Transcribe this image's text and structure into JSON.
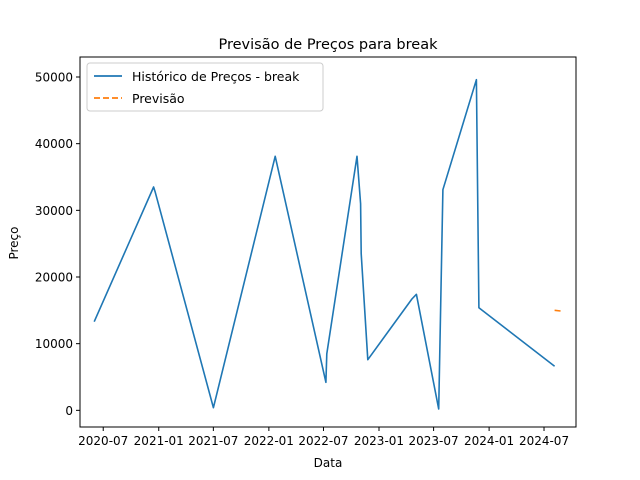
{
  "chart_data": {
    "type": "line",
    "title": "Previsão de Preços para break",
    "xlabel": "Data",
    "ylabel": "Preço",
    "x_scale": "date",
    "xlim": [
      "2020-04-15",
      "2024-10-15"
    ],
    "ylim": [
      -2500,
      53000
    ],
    "x_ticks": [
      "2020-07-01",
      "2021-01-01",
      "2021-07-01",
      "2022-01-01",
      "2022-07-01",
      "2023-01-01",
      "2023-07-01",
      "2024-01-01",
      "2024-07-01"
    ],
    "x_tick_labels": [
      "2020-07",
      "2021-01",
      "2021-07",
      "2022-01",
      "2022-07",
      "2023-01",
      "2023-07",
      "2024-01",
      "2024-07"
    ],
    "y_ticks": [
      0,
      10000,
      20000,
      30000,
      40000,
      50000
    ],
    "y_tick_labels": [
      "0",
      "10000",
      "20000",
      "30000",
      "40000",
      "50000"
    ],
    "grid": false,
    "legend_position": "top-left",
    "series": [
      {
        "name": "Histórico de Preços - break",
        "color": "#1f77b4",
        "style": "solid",
        "x": [
          "2020-06-01",
          "2020-12-15",
          "2020-12-20",
          "2021-07-01",
          "2022-01-22",
          "2022-07-09",
          "2022-07-12",
          "2022-10-20",
          "2022-11-01",
          "2022-11-03",
          "2022-11-25",
          "2023-04-20",
          "2023-05-05",
          "2023-07-18",
          "2023-08-01",
          "2023-11-20",
          "2023-11-28",
          "2024-08-05"
        ],
        "values": [
          13300,
          33500,
          32800,
          400,
          38100,
          4200,
          8500,
          38100,
          31000,
          23500,
          7600,
          16700,
          17400,
          200,
          33100,
          49600,
          15400,
          6600
        ]
      },
      {
        "name": "Previsão",
        "color": "#ff7f0e",
        "style": "dashed",
        "x": [
          "2024-08-05",
          "2024-08-25"
        ],
        "values": [
          15000,
          14900
        ]
      }
    ]
  }
}
